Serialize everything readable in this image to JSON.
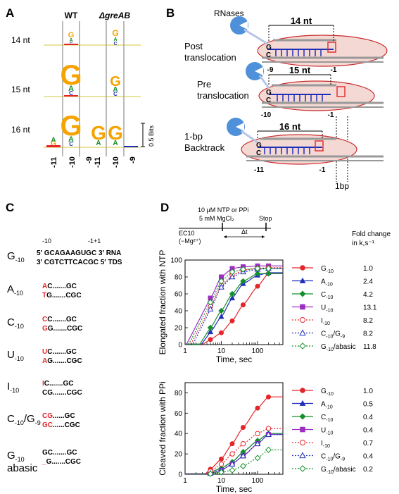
{
  "panels": {
    "a": {
      "letter": "A",
      "col_wt": "WT",
      "col_mut": "ΔgreAB",
      "rows": [
        "14 nt",
        "15 nt",
        "16 nt"
      ],
      "xticks": [
        "-11",
        "-10",
        "-9"
      ],
      "scale_label": "0.5 Bits"
    },
    "b": {
      "letter": "B",
      "rnases": "RNases",
      "states": [
        {
          "label1": "Post",
          "label2": "translocation",
          "length": "14 nt",
          "left": "-9",
          "right": "-1"
        },
        {
          "label1": "Pre",
          "label2": "translocation",
          "length": "15 nt",
          "left": "-10",
          "right": "-1"
        },
        {
          "label1": "1-bp",
          "label2": "Backtrack",
          "length": "16 nt",
          "left": "-11",
          "right": "-1"
        }
      ],
      "g": "G",
      "c": "C",
      "bp": "1bp"
    },
    "c": {
      "letter": "C",
      "seq_pos_left": "-10",
      "seq_pos_right": "-1+1",
      "rna_line": "5′ GCAGAAGUGC  3′ RNA",
      "tds_line": "3′ CGTCTTCACGC 5′ TDS",
      "variants": [
        {
          "name": "G",
          "sub": "-10",
          "top_red": "",
          "top_rest": "",
          "bot_red": "",
          "bot_rest": ""
        },
        {
          "name": "A",
          "sub": "-10",
          "top_red": "A",
          "top_rest": "C.......GC",
          "bot_red": "T",
          "bot_rest": "G.......CGC"
        },
        {
          "name": "C",
          "sub": "-10",
          "top_red": "C",
          "top_rest": "C.......GC",
          "bot_red": "G",
          "bot_rest": "G.......CGC"
        },
        {
          "name": "U",
          "sub": "-10",
          "top_red": "U",
          "top_rest": "C.......GC",
          "bot_red": "A",
          "bot_rest": "G.......CGC"
        },
        {
          "name": "I",
          "sub": "-10",
          "top_red": "I",
          "top_rest": "C.......GC",
          "bot_red": "",
          "bot_rest": "CG.......CGC"
        },
        {
          "name": "C",
          "sub": "-10",
          "name2": "/G",
          "sub2": "-9",
          "top_red": "CG",
          "top_rest": "......GC",
          "bot_red": "GC",
          "bot_rest": "......CGC"
        },
        {
          "name": "G",
          "sub": "-10",
          "name3": "abasic",
          "top_red": "",
          "top_rest": "GC.......GC",
          "bot_red": "_",
          "bot_rest": "G.......CGC"
        }
      ]
    },
    "d": {
      "letter": "D",
      "scheme_line1": "10 μM NTP or PPi",
      "scheme_line2": "5 mM MgCl₂",
      "scheme_ec": "EC10",
      "scheme_mg": "(−Mg²⁺)",
      "scheme_dt": "Δt",
      "scheme_stop": "Stop",
      "fold_header1": "Fold change",
      "fold_header2": "in k,s⁻¹",
      "legend_names": [
        {
          "base": "G",
          "sub": "-10",
          "suffix": ""
        },
        {
          "base": "A",
          "sub": "-10",
          "suffix": ""
        },
        {
          "base": "C",
          "sub": "-10",
          "suffix": ""
        },
        {
          "base": "U",
          "sub": "-10",
          "suffix": ""
        },
        {
          "base": "I",
          "sub": "-10",
          "suffix": ""
        },
        {
          "base": "C",
          "sub": "-10",
          "suffix": "/G",
          "sub2": "-9"
        },
        {
          "base": "G",
          "sub": "-10",
          "suffix": "/abasic"
        }
      ],
      "colors": [
        "#e4262a",
        "#1f2fb8",
        "#13902c",
        "#9b2fc2",
        "#e4262a",
        "#1f2fb8",
        "#13902c"
      ],
      "markers": [
        "circle",
        "triangle",
        "diamond",
        "square",
        "circle-open",
        "triangle-open",
        "diamond-open"
      ],
      "dashed": [
        false,
        false,
        false,
        false,
        true,
        true,
        true
      ]
    }
  },
  "chart_data": [
    {
      "type": "scatter",
      "xlabel": "Time, sec",
      "ylabel": "Elongated fraction with NTP",
      "xscale": "log",
      "xlim": [
        1,
        500
      ],
      "ylim": [
        0,
        100
      ],
      "xticks": [
        "1",
        "10",
        "100"
      ],
      "yticks": [
        "0",
        "20",
        "40",
        "60",
        "80",
        "100"
      ],
      "series_fold_change": [
        "1.0",
        "2.4",
        "4.2",
        "13.1",
        "8.2",
        "8.2",
        "11.8"
      ],
      "series": [
        {
          "points": [
            [
              5,
              6
            ],
            [
              10,
              14
            ],
            [
              20,
              28
            ],
            [
              40,
              47
            ],
            [
              100,
              69
            ],
            [
              200,
              84
            ]
          ]
        },
        {
          "points": [
            [
              5,
              15
            ],
            [
              10,
              33
            ],
            [
              20,
              55
            ],
            [
              40,
              72
            ],
            [
              100,
              82
            ],
            [
              200,
              85
            ]
          ]
        },
        {
          "points": [
            [
              5,
              20
            ],
            [
              10,
              40
            ],
            [
              20,
              60
            ],
            [
              40,
              75
            ],
            [
              100,
              84
            ],
            [
              200,
              84
            ]
          ]
        },
        {
          "points": [
            [
              5,
              55
            ],
            [
              10,
              80
            ],
            [
              20,
              90
            ],
            [
              40,
              92
            ],
            [
              100,
              93
            ],
            [
              200,
              93
            ]
          ]
        },
        {
          "points": [
            [
              5,
              45
            ],
            [
              10,
              70
            ],
            [
              20,
              82
            ],
            [
              40,
              88
            ],
            [
              100,
              90
            ],
            [
              200,
              91
            ]
          ]
        },
        {
          "points": [
            [
              5,
              42
            ],
            [
              10,
              68
            ],
            [
              20,
              80
            ],
            [
              40,
              86
            ],
            [
              100,
              89
            ],
            [
              200,
              90
            ]
          ]
        },
        {
          "points": [
            [
              5,
              50
            ],
            [
              10,
              75
            ],
            [
              20,
              86
            ],
            [
              40,
              89
            ],
            [
              100,
              90
            ],
            [
              200,
              90
            ]
          ]
        }
      ]
    },
    {
      "type": "scatter",
      "xlabel": "Time, sec",
      "ylabel": "Cleaved fraction with PPi",
      "xscale": "log",
      "xlim": [
        1,
        500
      ],
      "ylim": [
        0,
        90
      ],
      "xticks": [
        "1",
        "10",
        "100"
      ],
      "yticks": [
        "0",
        "20",
        "40",
        "60",
        "80"
      ],
      "series_fold_change": [
        "1.0",
        "0.5",
        "0.4",
        "0.4",
        "0.7",
        "0.4",
        "0.2"
      ],
      "series": [
        {
          "points": [
            [
              5,
              5
            ],
            [
              10,
              15
            ],
            [
              20,
              30
            ],
            [
              40,
              46
            ],
            [
              100,
              65
            ],
            [
              200,
              76
            ]
          ]
        },
        {
          "points": [
            [
              5,
              2
            ],
            [
              10,
              6
            ],
            [
              20,
              12
            ],
            [
              40,
              22
            ],
            [
              100,
              33
            ],
            [
              200,
              40
            ]
          ]
        },
        {
          "points": [
            [
              5,
              2
            ],
            [
              10,
              6
            ],
            [
              20,
              12
            ],
            [
              40,
              22
            ],
            [
              100,
              33
            ],
            [
              200,
              40
            ]
          ]
        },
        {
          "points": [
            [
              5,
              1
            ],
            [
              10,
              4
            ],
            [
              20,
              10
            ],
            [
              40,
              18
            ],
            [
              100,
              30
            ],
            [
              200,
              39
            ]
          ]
        },
        {
          "points": [
            [
              5,
              3
            ],
            [
              10,
              10
            ],
            [
              20,
              20
            ],
            [
              40,
              30
            ],
            [
              100,
              40
            ],
            [
              200,
              45
            ]
          ]
        },
        {
          "points": [
            [
              5,
              1
            ],
            [
              10,
              4
            ],
            [
              20,
              10
            ],
            [
              40,
              18
            ],
            [
              100,
              30
            ],
            [
              200,
              39
            ]
          ]
        },
        {
          "points": [
            [
              5,
              0.5
            ],
            [
              10,
              2
            ],
            [
              20,
              4
            ],
            [
              40,
              8
            ],
            [
              100,
              16
            ],
            [
              200,
              24
            ]
          ]
        }
      ]
    }
  ]
}
